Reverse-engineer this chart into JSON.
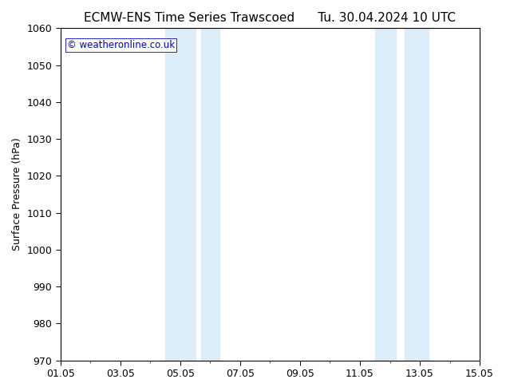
{
  "title_left": "ECMW-ENS Time Series Trawscoed",
  "title_right": "Tu. 30.04.2024 10 UTC",
  "ylabel": "Surface Pressure (hPa)",
  "ylim": [
    970,
    1060
  ],
  "ytick_interval": 10,
  "x_tick_labels": [
    "01.05",
    "03.05",
    "05.05",
    "07.05",
    "09.05",
    "11.05",
    "13.05",
    "15.05"
  ],
  "x_tick_positions_days": [
    0,
    2,
    4,
    6,
    8,
    10,
    12,
    14
  ],
  "shaded_bands": [
    {
      "x_start_day": 3.5,
      "x_end_day": 4.5
    },
    {
      "x_start_day": 4.7,
      "x_end_day": 5.3
    },
    {
      "x_start_day": 10.5,
      "x_end_day": 11.2
    },
    {
      "x_start_day": 11.5,
      "x_end_day": 12.3
    }
  ],
  "shade_color": "#daedf8",
  "watermark_text": "© weatheronline.co.uk",
  "watermark_color": "#0000cc",
  "background_color": "#ffffff",
  "plot_bg_color": "#ffffff",
  "title_fontsize": 11,
  "axis_label_fontsize": 9,
  "tick_fontsize": 9
}
